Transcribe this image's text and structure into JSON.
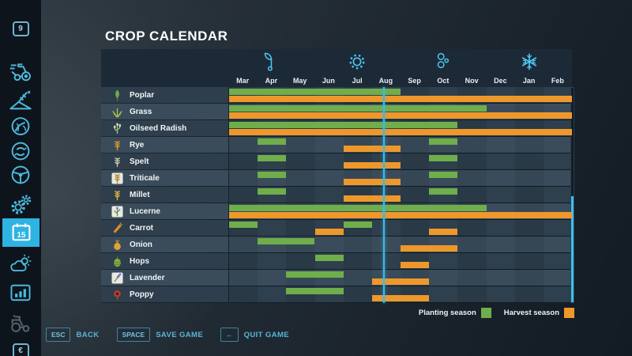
{
  "title": "CROP CALENDAR",
  "chart_data": {
    "type": "gantt",
    "title": "CROP CALENDAR",
    "categories": [
      "Mar",
      "Apr",
      "May",
      "Jun",
      "Jul",
      "Aug",
      "Sep",
      "Oct",
      "Nov",
      "Dec",
      "Jan",
      "Feb"
    ],
    "seasons": [
      {
        "name": "spring",
        "month": "Apr"
      },
      {
        "name": "summer",
        "month": "Jul"
      },
      {
        "name": "autumn",
        "month": "Oct"
      },
      {
        "name": "winter",
        "month": "Jan"
      }
    ],
    "series_legend": [
      {
        "label": "Planting season",
        "color": "#6fae4b"
      },
      {
        "label": "Harvest season",
        "color": "#ee982b"
      }
    ],
    "current_day_marker": {
      "month": "Aug",
      "fraction": 0.42
    },
    "crops": [
      {
        "name": "Poplar",
        "icon": "poplar",
        "planting": [
          [
            0,
            5
          ]
        ],
        "harvest": [
          [
            0,
            11
          ]
        ]
      },
      {
        "name": "Grass",
        "icon": "grass",
        "planting": [
          [
            0,
            8
          ]
        ],
        "harvest": [
          [
            0,
            11
          ]
        ]
      },
      {
        "name": "Oilseed Radish",
        "icon": "oilseed_radish",
        "planting": [
          [
            0,
            7
          ]
        ],
        "harvest": [
          [
            0,
            11
          ]
        ]
      },
      {
        "name": "Rye",
        "icon": "rye",
        "planting": [
          [
            1,
            1
          ],
          [
            7,
            7
          ]
        ],
        "harvest": [
          [
            4,
            5
          ]
        ]
      },
      {
        "name": "Spelt",
        "icon": "spelt",
        "planting": [
          [
            1,
            1
          ],
          [
            7,
            7
          ]
        ],
        "harvest": [
          [
            4,
            5
          ]
        ]
      },
      {
        "name": "Triticale",
        "icon": "triticale",
        "planting": [
          [
            1,
            1
          ],
          [
            7,
            7
          ]
        ],
        "harvest": [
          [
            4,
            5
          ]
        ]
      },
      {
        "name": "Millet",
        "icon": "millet",
        "planting": [
          [
            1,
            1
          ],
          [
            7,
            7
          ]
        ],
        "harvest": [
          [
            4,
            5
          ]
        ]
      },
      {
        "name": "Lucerne",
        "icon": "lucerne",
        "planting": [
          [
            0,
            8
          ]
        ],
        "harvest": [
          [
            0,
            11
          ]
        ]
      },
      {
        "name": "Carrot",
        "icon": "carrot",
        "planting": [
          [
            0,
            0
          ],
          [
            4,
            4
          ]
        ],
        "harvest": [
          [
            3,
            3
          ],
          [
            7,
            7
          ]
        ]
      },
      {
        "name": "Onion",
        "icon": "onion",
        "planting": [
          [
            1,
            2
          ]
        ],
        "harvest": [
          [
            6,
            7
          ]
        ]
      },
      {
        "name": "Hops",
        "icon": "hops",
        "planting": [
          [
            3,
            3
          ]
        ],
        "harvest": [
          [
            6,
            6
          ]
        ]
      },
      {
        "name": "Lavender",
        "icon": "lavender",
        "planting": [
          [
            2,
            3
          ]
        ],
        "harvest": [
          [
            5,
            6
          ]
        ]
      },
      {
        "name": "Poppy",
        "icon": "poppy",
        "planting": [
          [
            2,
            3
          ]
        ],
        "harvest": [
          [
            5,
            6
          ]
        ]
      }
    ]
  },
  "sidebar": {
    "items": [
      {
        "name": "hotkey-9",
        "type": "key-badge",
        "label": "9"
      },
      {
        "name": "vehicles",
        "type": "icon",
        "icon": "tractor-implements"
      },
      {
        "name": "field-jobs",
        "type": "icon",
        "icon": "plow-hill"
      },
      {
        "name": "agronomy",
        "type": "icon",
        "icon": "globe-plant"
      },
      {
        "name": "contracts",
        "type": "icon",
        "icon": "head-cycle"
      },
      {
        "name": "garage",
        "type": "icon",
        "icon": "steering-wheel"
      },
      {
        "name": "settings",
        "type": "icon",
        "icon": "gears"
      },
      {
        "name": "calendar",
        "type": "icon",
        "icon": "calendar",
        "label": "15",
        "active": true
      },
      {
        "name": "weather",
        "type": "icon",
        "icon": "weather"
      },
      {
        "name": "statistics",
        "type": "icon",
        "icon": "bar-chart"
      },
      {
        "name": "vehicle-overview",
        "type": "icon",
        "icon": "tractor",
        "disabled": true
      },
      {
        "name": "hotkey-euro",
        "type": "key-badge",
        "label": "€"
      }
    ]
  },
  "footer": {
    "buttons": [
      {
        "key": "ESC",
        "label": "BACK"
      },
      {
        "key": "SPACE",
        "label": "SAVE GAME"
      },
      {
        "key": "←",
        "label": "QUIT GAME"
      }
    ]
  }
}
